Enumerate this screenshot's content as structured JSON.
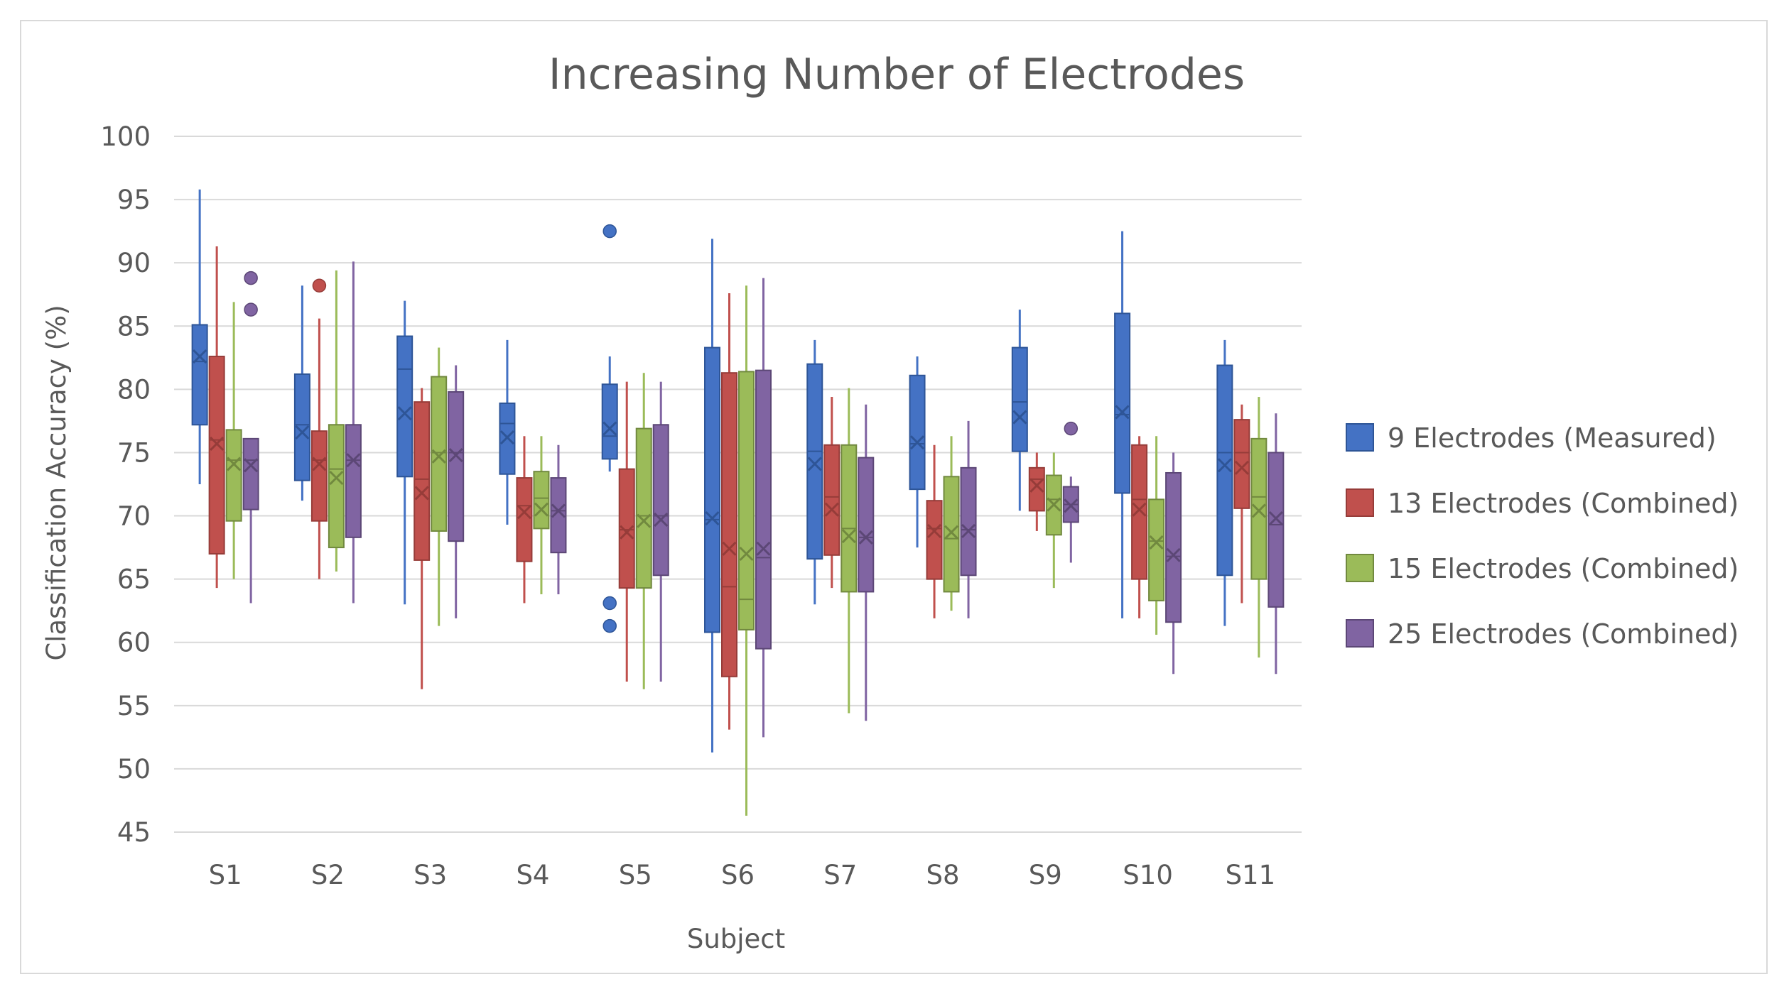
{
  "chart_data": {
    "type": "boxplot",
    "title": "Increasing Number of Electrodes",
    "xlabel": "Subject",
    "ylabel": "Classification Accuracy (%)",
    "ylim": [
      45,
      100
    ],
    "yticks": [
      45,
      50,
      55,
      60,
      65,
      70,
      75,
      80,
      85,
      90,
      95,
      100
    ],
    "grid": true,
    "legend_position": "right",
    "categories": [
      "S1",
      "S2",
      "S3",
      "S4",
      "S5",
      "S6",
      "S7",
      "S8",
      "S9",
      "S10",
      "S11"
    ],
    "series": [
      {
        "name": "9 Electrodes (Measured)",
        "color": "#4472c4",
        "stroke": "#2e5597",
        "boxes": [
          {
            "min": 72.5,
            "q1": 77.2,
            "median": 82.2,
            "q3": 85.1,
            "max": 95.8,
            "mean": 82.6,
            "outliers": []
          },
          {
            "min": 71.2,
            "q1": 72.8,
            "median": 77.2,
            "q3": 81.2,
            "max": 88.2,
            "mean": 76.6,
            "outliers": []
          },
          {
            "min": 63.0,
            "q1": 73.1,
            "median": 81.6,
            "q3": 84.2,
            "max": 87.0,
            "mean": 78.1,
            "outliers": []
          },
          {
            "min": 69.3,
            "q1": 73.3,
            "median": 77.3,
            "q3": 78.9,
            "max": 83.9,
            "mean": 76.2,
            "outliers": []
          },
          {
            "min": 73.5,
            "q1": 74.5,
            "median": 76.3,
            "q3": 80.4,
            "max": 82.6,
            "mean": 76.9,
            "outliers": [
              92.5,
              63.1,
              61.3
            ]
          },
          {
            "min": 51.3,
            "q1": 60.8,
            "median": 69.7,
            "q3": 83.3,
            "max": 91.9,
            "mean": 69.8,
            "outliers": []
          },
          {
            "min": 63.0,
            "q1": 66.6,
            "median": 75.1,
            "q3": 82.0,
            "max": 83.9,
            "mean": 74.1,
            "outliers": []
          },
          {
            "min": 67.5,
            "q1": 72.1,
            "median": 75.7,
            "q3": 81.1,
            "max": 82.6,
            "mean": 75.8,
            "outliers": []
          },
          {
            "min": 70.4,
            "q1": 75.1,
            "median": 79.0,
            "q3": 83.3,
            "max": 86.3,
            "mean": 77.8,
            "outliers": []
          },
          {
            "min": 61.9,
            "q1": 71.8,
            "median": 78.0,
            "q3": 86.0,
            "max": 92.5,
            "mean": 78.2,
            "outliers": []
          },
          {
            "min": 61.3,
            "q1": 65.3,
            "median": 75.0,
            "q3": 81.9,
            "max": 83.9,
            "mean": 74.0,
            "outliers": []
          }
        ]
      },
      {
        "name": "13 Electrodes (Combined)",
        "color": "#c0504d",
        "stroke": "#963c39",
        "boxes": [
          {
            "min": 64.3,
            "q1": 67.0,
            "median": 76.0,
            "q3": 82.6,
            "max": 91.3,
            "mean": 75.7,
            "outliers": []
          },
          {
            "min": 65.0,
            "q1": 69.6,
            "median": 74.4,
            "q3": 76.7,
            "max": 85.6,
            "mean": 74.1,
            "outliers": [
              88.2
            ]
          },
          {
            "min": 56.3,
            "q1": 66.5,
            "median": 72.9,
            "q3": 79.0,
            "max": 80.1,
            "mean": 71.8,
            "outliers": []
          },
          {
            "min": 63.1,
            "q1": 66.4,
            "median": 70.8,
            "q3": 73.0,
            "max": 76.3,
            "mean": 70.3,
            "outliers": []
          },
          {
            "min": 56.9,
            "q1": 64.3,
            "median": 68.9,
            "q3": 73.7,
            "max": 80.6,
            "mean": 68.7,
            "outliers": []
          },
          {
            "min": 53.1,
            "q1": 57.3,
            "median": 64.4,
            "q3": 81.3,
            "max": 87.6,
            "mean": 67.4,
            "outliers": []
          },
          {
            "min": 64.3,
            "q1": 66.9,
            "median": 71.5,
            "q3": 75.6,
            "max": 79.4,
            "mean": 70.5,
            "outliers": []
          },
          {
            "min": 61.9,
            "q1": 65.0,
            "median": 69.0,
            "q3": 71.2,
            "max": 75.6,
            "mean": 68.8,
            "outliers": []
          },
          {
            "min": 68.8,
            "q1": 70.4,
            "median": 72.9,
            "q3": 73.8,
            "max": 75.0,
            "mean": 72.4,
            "outliers": []
          },
          {
            "min": 61.9,
            "q1": 65.0,
            "median": 71.3,
            "q3": 75.6,
            "max": 76.3,
            "mean": 70.5,
            "outliers": []
          },
          {
            "min": 63.1,
            "q1": 70.6,
            "median": 75.0,
            "q3": 77.6,
            "max": 78.8,
            "mean": 73.8,
            "outliers": []
          }
        ]
      },
      {
        "name": "15 Electrodes (Combined)",
        "color": "#9bbb59",
        "stroke": "#71893f",
        "boxes": [
          {
            "min": 65.0,
            "q1": 69.6,
            "median": 74.4,
            "q3": 76.8,
            "max": 86.9,
            "mean": 74.1,
            "outliers": []
          },
          {
            "min": 65.6,
            "q1": 67.5,
            "median": 73.7,
            "q3": 77.2,
            "max": 89.4,
            "mean": 73.0,
            "outliers": []
          },
          {
            "min": 61.3,
            "q1": 68.8,
            "median": 75.0,
            "q3": 81.0,
            "max": 83.3,
            "mean": 74.7,
            "outliers": []
          },
          {
            "min": 63.8,
            "q1": 69.0,
            "median": 71.4,
            "q3": 73.5,
            "max": 76.3,
            "mean": 70.5,
            "outliers": []
          },
          {
            "min": 56.3,
            "q1": 64.3,
            "median": 70.0,
            "q3": 76.9,
            "max": 81.3,
            "mean": 69.6,
            "outliers": []
          },
          {
            "min": 46.3,
            "q1": 61.0,
            "median": 63.4,
            "q3": 81.4,
            "max": 88.2,
            "mean": 67.0,
            "outliers": []
          },
          {
            "min": 54.4,
            "q1": 64.0,
            "median": 69.0,
            "q3": 75.6,
            "max": 80.1,
            "mean": 68.4,
            "outliers": []
          },
          {
            "min": 62.5,
            "q1": 64.0,
            "median": 68.2,
            "q3": 73.1,
            "max": 76.3,
            "mean": 68.7,
            "outliers": []
          },
          {
            "min": 64.3,
            "q1": 68.5,
            "median": 71.3,
            "q3": 73.2,
            "max": 75.0,
            "mean": 70.9,
            "outliers": []
          },
          {
            "min": 60.6,
            "q1": 63.3,
            "median": 68.0,
            "q3": 71.3,
            "max": 76.3,
            "mean": 67.9,
            "outliers": []
          },
          {
            "min": 58.8,
            "q1": 65.0,
            "median": 71.5,
            "q3": 76.1,
            "max": 79.4,
            "mean": 70.4,
            "outliers": []
          }
        ]
      },
      {
        "name": "25 Electrodes (Combined)",
        "color": "#8064a2",
        "stroke": "#5c4776",
        "boxes": [
          {
            "min": 63.1,
            "q1": 70.5,
            "median": 74.4,
            "q3": 76.1,
            "max": 76.1,
            "mean": 74.0,
            "outliers": [
              88.8,
              86.3
            ]
          },
          {
            "min": 63.1,
            "q1": 68.3,
            "median": 74.4,
            "q3": 77.2,
            "max": 90.1,
            "mean": 74.4,
            "outliers": []
          },
          {
            "min": 61.9,
            "q1": 68.0,
            "median": 75.0,
            "q3": 79.8,
            "max": 81.9,
            "mean": 74.8,
            "outliers": []
          },
          {
            "min": 63.8,
            "q1": 67.1,
            "median": 70.4,
            "q3": 73.0,
            "max": 75.6,
            "mean": 70.4,
            "outliers": []
          },
          {
            "min": 56.9,
            "q1": 65.3,
            "median": 70.0,
            "q3": 77.2,
            "max": 80.6,
            "mean": 69.7,
            "outliers": []
          },
          {
            "min": 52.5,
            "q1": 59.5,
            "median": 66.7,
            "q3": 81.5,
            "max": 88.8,
            "mean": 67.4,
            "outliers": []
          },
          {
            "min": 53.8,
            "q1": 64.0,
            "median": 68.3,
            "q3": 74.6,
            "max": 78.8,
            "mean": 68.3,
            "outliers": []
          },
          {
            "min": 61.9,
            "q1": 65.3,
            "median": 68.9,
            "q3": 73.8,
            "max": 77.5,
            "mean": 68.8,
            "outliers": []
          },
          {
            "min": 66.3,
            "q1": 69.5,
            "median": 70.9,
            "q3": 72.3,
            "max": 73.1,
            "mean": 70.8,
            "outliers": [
              76.9
            ]
          },
          {
            "min": 57.5,
            "q1": 61.6,
            "median": 66.8,
            "q3": 73.4,
            "max": 75.0,
            "mean": 66.9,
            "outliers": []
          },
          {
            "min": 57.5,
            "q1": 62.8,
            "median": 69.3,
            "q3": 75.0,
            "max": 78.1,
            "mean": 69.8,
            "outliers": []
          }
        ]
      }
    ]
  }
}
